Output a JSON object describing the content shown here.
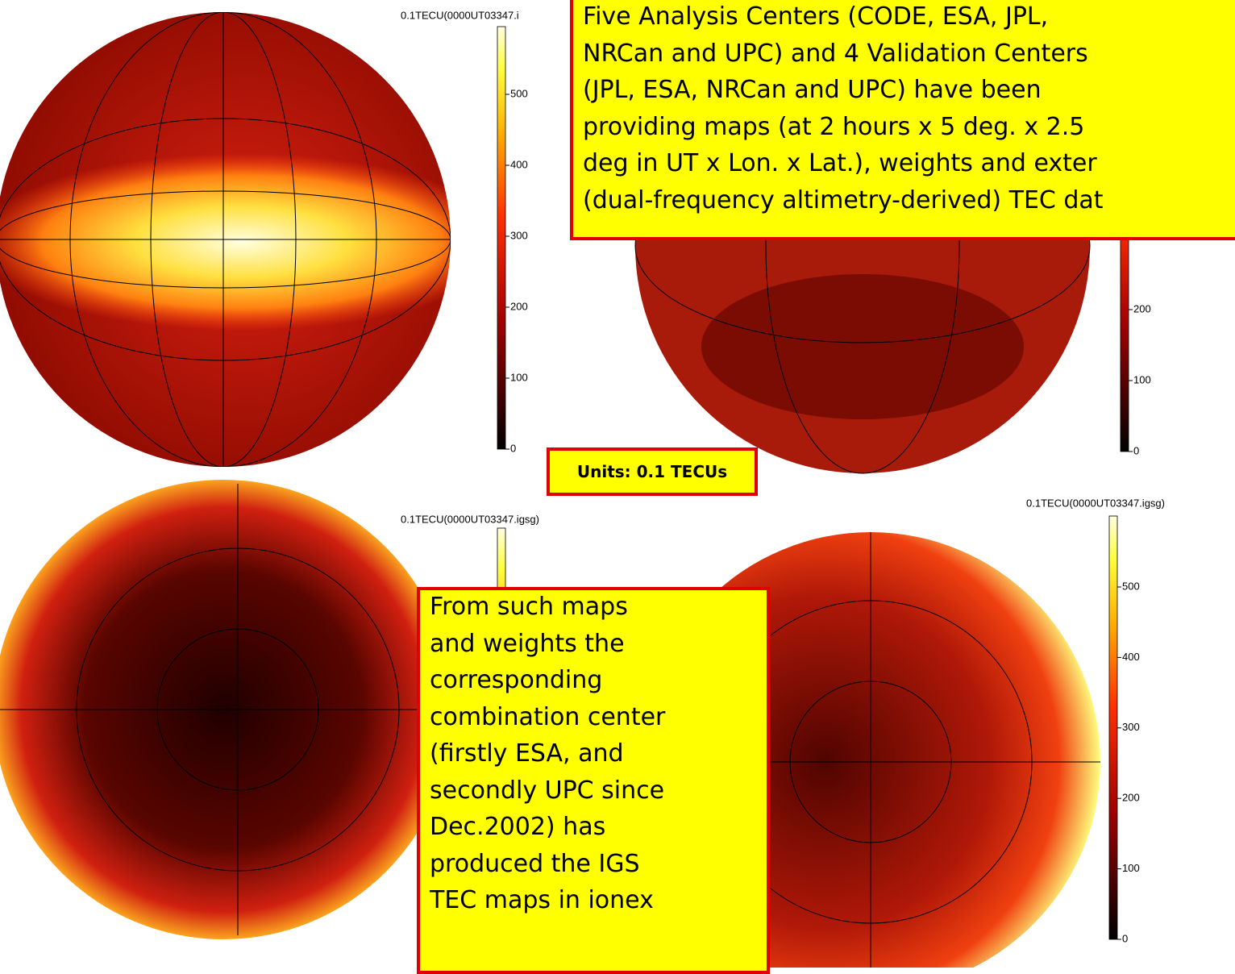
{
  "maps": [
    {
      "title": "0.1TECU(0000UT03347.i",
      "colorbar_ticks": [
        0,
        100,
        200,
        300,
        400,
        500
      ]
    },
    {
      "colorbar_ticks": [
        0,
        100,
        200
      ]
    },
    {
      "title": "0.1TECU(0000UT03347.igsg)",
      "colorbar_ticks": []
    },
    {
      "title": "0.1TECU(0000UT03347.igsg)",
      "colorbar_ticks": [
        0,
        100,
        200,
        300,
        400,
        500
      ]
    }
  ],
  "top_box": {
    "lines": [
      "Five Analysis Centers (CODE, ESA, JPL,",
      "NRCan and UPC) and 4 Validation Centers",
      "(JPL, ESA, NRCan and UPC) have been",
      "providing  maps (at 2 hours x 5 deg. x 2.5",
      "deg in UT x Lon. x Lat.), weights and exter",
      "(dual-frequency altimetry-derived) TEC dat"
    ]
  },
  "units_box": {
    "text": "Units: 0.1 TECUs"
  },
  "bottom_box": {
    "lines": [
      "From such maps",
      "and weights the",
      "corresponding",
      "combination center",
      "(firstly ESA, and",
      "secondly UPC since",
      "Dec.2002) has",
      "produced the IGS",
      "TEC maps  in ionex"
    ]
  }
}
